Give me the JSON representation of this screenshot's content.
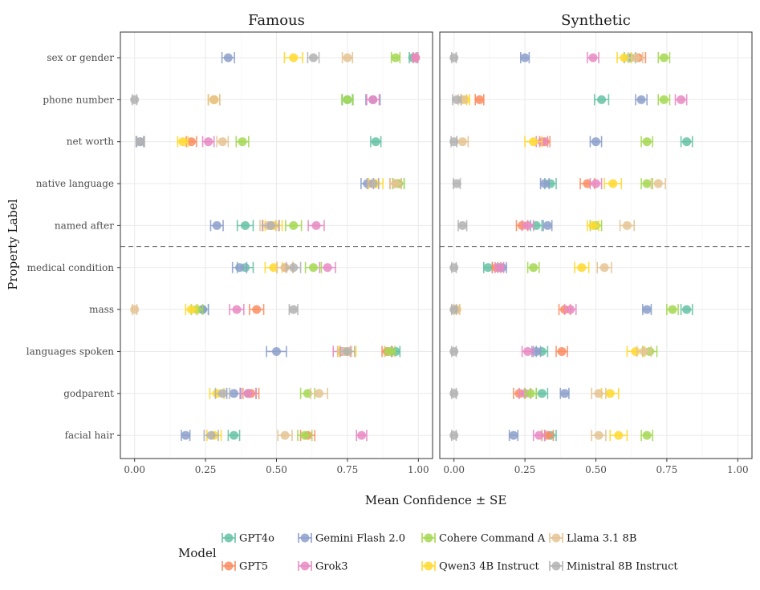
{
  "chart_data": {
    "type": "scatter",
    "panels": [
      "Famous",
      "Synthetic"
    ],
    "xlabel": "Mean Confidence ± SE",
    "ylabel": "Property Label",
    "xlim": [
      -0.05,
      1.05
    ],
    "xticks": [
      0,
      0.25,
      0.5,
      0.75,
      1.0
    ],
    "xtick_labels": [
      "0.00",
      "0.25",
      "0.50",
      "0.75",
      "1.00"
    ],
    "categories": [
      "sex or gender",
      "phone number",
      "net worth",
      "native language",
      "named after",
      "medical condition",
      "mass",
      "languages spoken",
      "godparent",
      "facial hair"
    ],
    "divider_after": "named after",
    "grid": true,
    "legend_title": "Model",
    "legend_position": "bottom",
    "series": [
      {
        "name": "GPT4o",
        "color": "#66c2a5",
        "famous": {
          "values": [
            0.98,
            0.75,
            0.85,
            0.93,
            0.39,
            0.39,
            0.24,
            0.92,
            0.4,
            0.35
          ],
          "se": [
            0.012,
            0.018,
            0.018,
            0.02,
            0.028,
            0.028,
            0.02,
            0.015,
            0.028,
            0.02
          ]
        },
        "synthetic": {
          "values": [
            0.62,
            0.52,
            0.82,
            0.34,
            0.29,
            0.12,
            0.82,
            0.31,
            0.31,
            0.34
          ],
          "se": [
            0.02,
            0.025,
            0.02,
            0.02,
            0.02,
            0.015,
            0.02,
            0.02,
            0.02,
            0.02
          ]
        }
      },
      {
        "name": "GPT5",
        "color": "#fc8d62",
        "famous": {
          "values": [
            0.99,
            0.28,
            0.2,
            0.92,
            0.48,
            0.53,
            0.43,
            0.89,
            0.41,
            0.61
          ],
          "se": [
            0.008,
            0.02,
            0.018,
            0.02,
            0.028,
            0.028,
            0.025,
            0.018,
            0.028,
            0.025
          ]
        },
        "synthetic": {
          "values": [
            0.65,
            0.09,
            0.32,
            0.47,
            0.24,
            0.15,
            0.39,
            0.38,
            0.23,
            0.33
          ],
          "se": [
            0.025,
            0.015,
            0.018,
            0.025,
            0.02,
            0.015,
            0.02,
            0.02,
            0.02,
            0.02
          ]
        }
      },
      {
        "name": "Gemini Flash 2.0",
        "color": "#8da0cb",
        "famous": {
          "values": [
            0.33,
            0.84,
            0.02,
            0.82,
            0.29,
            0.37,
            0.24,
            0.5,
            0.35,
            0.18
          ],
          "se": [
            0.022,
            0.025,
            0.012,
            0.022,
            0.022,
            0.025,
            0.02,
            0.035,
            0.025,
            0.015
          ]
        },
        "synthetic": {
          "values": [
            0.25,
            0.66,
            0.5,
            0.32,
            0.33,
            0.17,
            0.68,
            0.29,
            0.39,
            0.21
          ],
          "se": [
            0.015,
            0.02,
            0.02,
            0.015,
            0.015,
            0.015,
            0.015,
            0.015,
            0.015,
            0.015
          ]
        }
      },
      {
        "name": "Grok3",
        "color": "#e78ac3",
        "famous": {
          "values": [
            0.99,
            0.84,
            0.26,
            0.84,
            0.64,
            0.68,
            0.36,
            0.73,
            0.4,
            0.8
          ],
          "se": [
            0.008,
            0.022,
            0.02,
            0.02,
            0.028,
            0.028,
            0.025,
            0.03,
            0.028,
            0.018
          ]
        },
        "synthetic": {
          "values": [
            0.49,
            0.8,
            0.31,
            0.5,
            0.26,
            0.16,
            0.41,
            0.26,
            0.25,
            0.3
          ],
          "se": [
            0.02,
            0.02,
            0.02,
            0.02,
            0.02,
            0.015,
            0.02,
            0.02,
            0.02,
            0.02
          ]
        }
      },
      {
        "name": "Cohere Command A",
        "color": "#a6d854",
        "famous": {
          "values": [
            0.92,
            0.75,
            0.38,
            0.93,
            0.56,
            0.63,
            0.22,
            0.9,
            0.61,
            0.6
          ],
          "se": [
            0.015,
            0.02,
            0.022,
            0.02,
            0.028,
            0.028,
            0.02,
            0.018,
            0.025,
            0.025
          ]
        },
        "synthetic": {
          "values": [
            0.74,
            0.74,
            0.68,
            0.68,
            0.5,
            0.28,
            0.77,
            0.69,
            0.27,
            0.68
          ],
          "se": [
            0.02,
            0.02,
            0.02,
            0.02,
            0.02,
            0.02,
            0.02,
            0.025,
            0.02,
            0.02
          ]
        }
      },
      {
        "name": "Qwen3 4B Instruct",
        "color": "#ffd92f",
        "famous": {
          "values": [
            0.56,
            0.28,
            0.17,
            0.85,
            0.49,
            0.49,
            0.2,
            0.75,
            0.29,
            0.28
          ],
          "se": [
            0.032,
            0.02,
            0.018,
            0.025,
            0.03,
            0.03,
            0.02,
            0.03,
            0.025,
            0.025
          ]
        },
        "synthetic": {
          "values": [
            0.6,
            0.04,
            0.28,
            0.56,
            0.49,
            0.45,
            0.01,
            0.64,
            0.55,
            0.58
          ],
          "se": [
            0.025,
            0.015,
            0.03,
            0.03,
            0.02,
            0.025,
            0.01,
            0.03,
            0.03,
            0.03
          ]
        }
      },
      {
        "name": "Llama 3.1 8B",
        "color": "#e5c494",
        "famous": {
          "values": [
            0.75,
            0.28,
            0.31,
            0.92,
            0.47,
            0.53,
            0.0,
            0.74,
            0.65,
            0.53
          ],
          "se": [
            0.018,
            0.02,
            0.02,
            0.02,
            0.028,
            0.028,
            0.008,
            0.025,
            0.03,
            0.025
          ]
        },
        "synthetic": {
          "values": [
            0.64,
            0.03,
            0.03,
            0.72,
            0.61,
            0.53,
            0.01,
            0.67,
            0.51,
            0.51
          ],
          "se": [
            0.025,
            0.015,
            0.02,
            0.025,
            0.025,
            0.025,
            0.01,
            0.025,
            0.025,
            0.025
          ]
        }
      },
      {
        "name": "Ministral 8B Instruct",
        "color": "#b3b3b3",
        "famous": {
          "values": [
            0.63,
            0.0,
            0.02,
            0.84,
            0.48,
            0.56,
            0.56,
            0.75,
            0.31,
            0.27
          ],
          "se": [
            0.02,
            0.008,
            0.015,
            0.02,
            0.03,
            0.025,
            0.015,
            0.025,
            0.025,
            0.025
          ]
        },
        "synthetic": {
          "values": [
            0.0,
            0.01,
            0.0,
            0.01,
            0.03,
            0.0,
            0.0,
            0.0,
            0.0,
            0.0
          ],
          "se": [
            0.008,
            0.015,
            0.01,
            0.012,
            0.015,
            0.008,
            0.008,
            0.008,
            0.008,
            0.008
          ]
        }
      }
    ]
  }
}
